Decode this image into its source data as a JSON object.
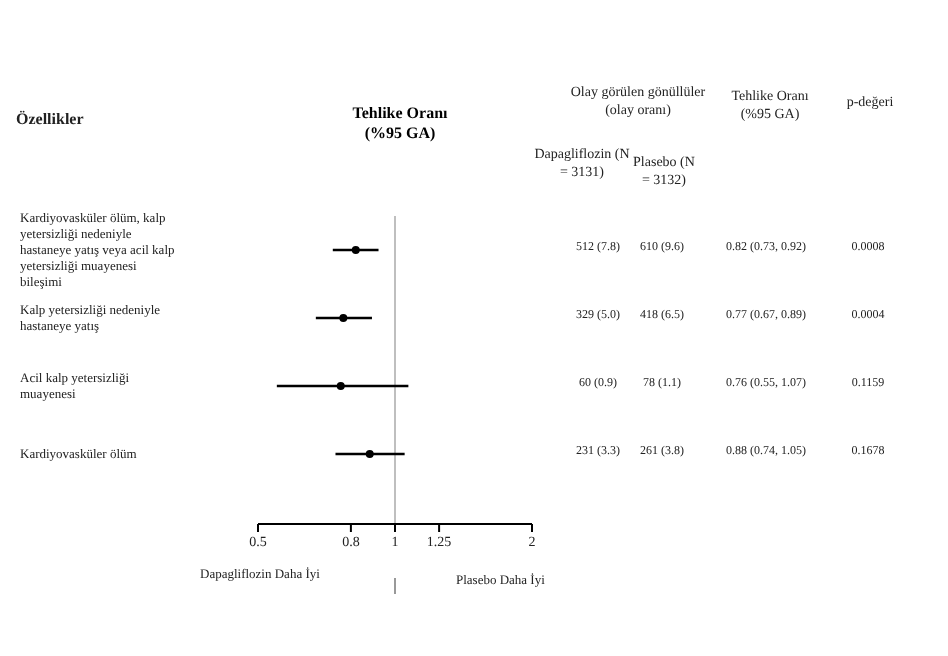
{
  "chart_data": {
    "type": "scatter",
    "title": "Tehlike Oranı (%95 GA)",
    "categories": [
      "Kardiyovasküler ölüm, kalp yetersizliği nedeniyle hastaneye yatış veya acil kalp yetersizliği muayenesi bileşimi",
      "Kalp yetersizliği nedeniyle hastaneye yatış",
      "Acil kalp yetersizliği muayenesi",
      "Kardiyovasküler ölüm"
    ],
    "values": [
      0.82,
      0.77,
      0.76,
      0.88
    ],
    "errors": [
      [
        0.73,
        0.92
      ],
      [
        0.67,
        0.89
      ],
      [
        0.55,
        1.07
      ],
      [
        0.74,
        1.05
      ]
    ],
    "color": "#000000",
    "marker": "circle",
    "log": "x",
    "orientation": "horizontal",
    "xlim": [
      0.5,
      2
    ],
    "xticks": [
      0.5,
      0.8,
      1,
      1.25,
      2
    ],
    "ref_lines": [
      {
        "axis": "x",
        "value": 1,
        "color": "#bfbfbf"
      }
    ],
    "annotations": [
      "Özellikler",
      "Olay görülen gönüllüler (olay oranı)",
      "Tehlike Oranı (%95 GA)",
      "p-değeri",
      "Dapagliflozin (N = 3131)",
      "Plasebo (N = 3132)",
      "Dapagliflozin Daha İyi",
      "Plasebo Daha İyi",
      "512 (7.8)",
      "610 (9.6)",
      "0.82 (0.73, 0.92)",
      "0.0008",
      "329 (5.0)",
      "418 (6.5)",
      "0.77 (0.67, 0.89)",
      "0.0004",
      "60 (0.9)",
      "78 (1.1)",
      "0.76 (0.55, 1.07)",
      "0.1159",
      "231 (3.3)",
      "261 (3.8)",
      "0.88 (0.74, 1.05)",
      "0.1678"
    ],
    "grid": false,
    "legend": false
  }
}
